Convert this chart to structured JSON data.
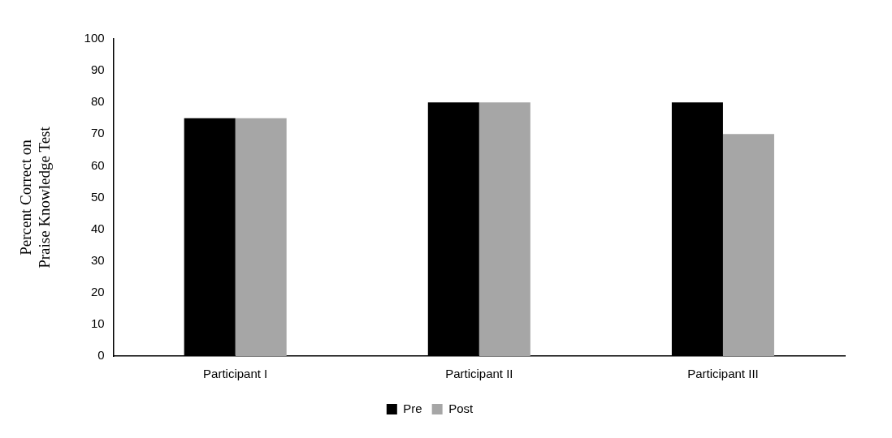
{
  "chart_data": {
    "type": "bar",
    "ylabel": "Percent Correct on Praise Knowledge Test",
    "categories": [
      "Participant I",
      "Participant II",
      "Participant III"
    ],
    "series": [
      {
        "name": "Pre",
        "color": "#000000",
        "values": [
          75,
          80,
          80
        ]
      },
      {
        "name": "Post",
        "color": "#a6a6a6",
        "values": [
          75,
          80,
          70
        ]
      }
    ],
    "ylim": [
      0,
      100
    ],
    "yticks": [
      0,
      10,
      20,
      30,
      40,
      50,
      60,
      70,
      80,
      90,
      100
    ],
    "grid": false,
    "legend": "bottom"
  }
}
